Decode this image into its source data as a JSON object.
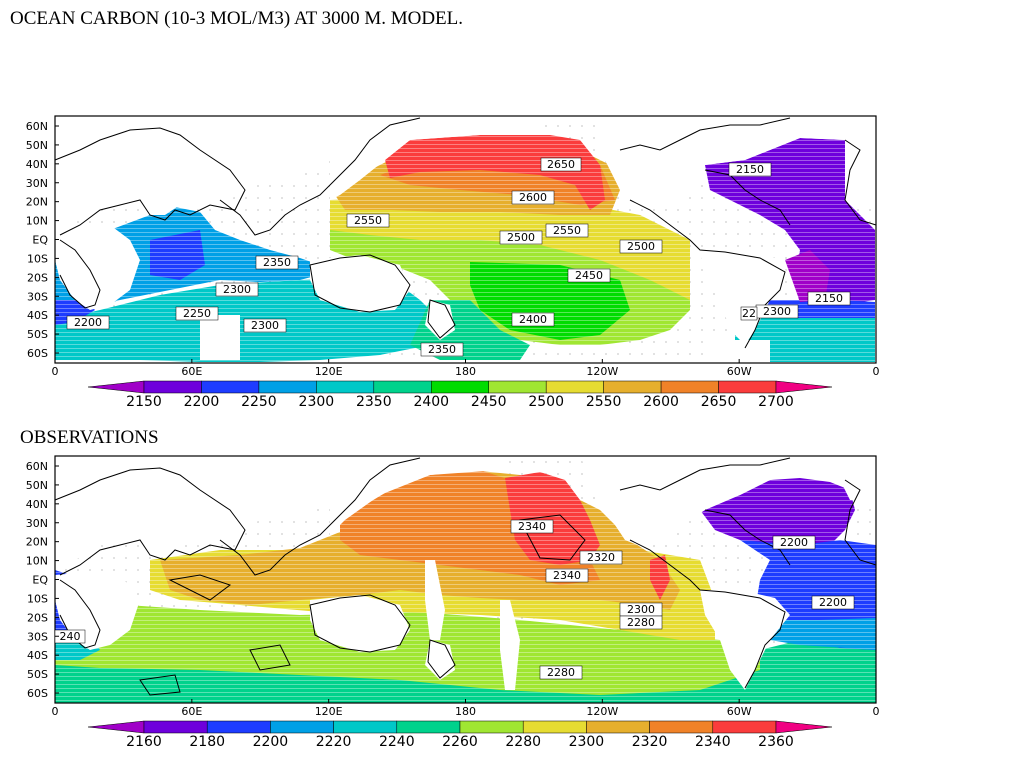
{
  "title": "OCEAN CARBON (10-3 MOL/M3) AT 3000 M. MODEL.",
  "subtitle": "OBSERVATIONS",
  "axes": {
    "lat_labels": [
      "60N",
      "50N",
      "40N",
      "30N",
      "20N",
      "10N",
      "EQ",
      "10S",
      "20S",
      "30S",
      "40S",
      "50S",
      "60S"
    ],
    "lon_labels": [
      "0",
      "60E",
      "120E",
      "180",
      "120W",
      "60W",
      "0"
    ]
  },
  "colors": {
    "land": "#ffffff",
    "coast": "#000000"
  },
  "model": {
    "colorbar": {
      "levels": [
        "2150",
        "2200",
        "2250",
        "2300",
        "2350",
        "2400",
        "2450",
        "2500",
        "2550",
        "2600",
        "2650",
        "2700"
      ],
      "colors": [
        "#a000c8",
        "#6e00dc",
        "#1e3cff",
        "#00a0e6",
        "#00c8c8",
        "#00d28c",
        "#00dc00",
        "#a0e632",
        "#e6dc32",
        "#e6af2d",
        "#f08228",
        "#fa3c3c",
        "#f00082"
      ]
    },
    "contour_labels": [
      "2650",
      "2150",
      "2600",
      "2550",
      "2550",
      "2500",
      "2500",
      "2350",
      "2450",
      "2300",
      "2150",
      "2250",
      "2300",
      "2200",
      "2300",
      "2400",
      "2350",
      "22"
    ]
  },
  "observations": {
    "colorbar": {
      "levels": [
        "2160",
        "2180",
        "2200",
        "2220",
        "2240",
        "2260",
        "2280",
        "2300",
        "2320",
        "2340",
        "2360"
      ],
      "colors": [
        "#a000c8",
        "#6e00dc",
        "#1e3cff",
        "#00a0e6",
        "#00c8c8",
        "#00d28c",
        "#a0e632",
        "#e6dc32",
        "#e6af2d",
        "#f08228",
        "#fa3c3c",
        "#f00082"
      ]
    },
    "contour_labels": [
      "2340",
      "2320",
      "2340",
      "2200",
      "2200",
      "2300",
      "2280",
      "240",
      "2280"
    ]
  }
}
